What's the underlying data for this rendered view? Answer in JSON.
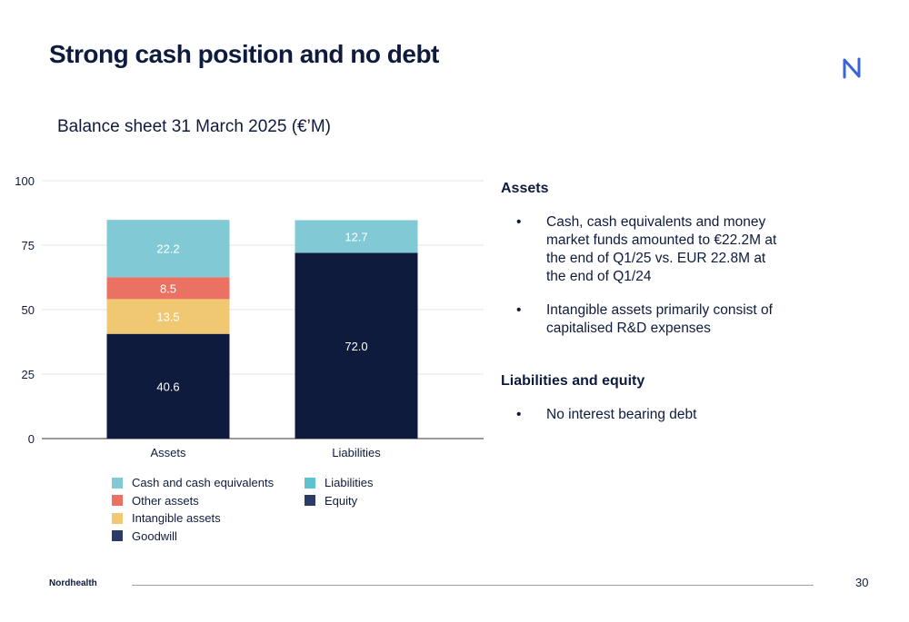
{
  "slide": {
    "title": "Strong cash position and no debt",
    "logo": "nordhealth-n-logo",
    "page_number": "30",
    "brand": "Nordhealth"
  },
  "chart_data": {
    "type": "bar",
    "stacked": true,
    "title": "Balance sheet 31 March 2025 (€’M)",
    "xlabel": "",
    "ylabel": "",
    "ylim": [
      0,
      100
    ],
    "yticks": [
      "0",
      "25",
      "50",
      "75",
      "100"
    ],
    "categories": [
      "Assets",
      "Liabilities"
    ],
    "series": [
      {
        "name": "Goodwill",
        "values": [
          40.6,
          null
        ],
        "labels": [
          "40.6",
          ""
        ],
        "color": "#0f1b3c"
      },
      {
        "name": "Intangible assets",
        "values": [
          13.5,
          null
        ],
        "labels": [
          "13.5",
          ""
        ],
        "color": "#f0c872"
      },
      {
        "name": "Other assets",
        "values": [
          8.5,
          null
        ],
        "labels": [
          "8.5",
          ""
        ],
        "color": "#eb7163"
      },
      {
        "name": "Cash and cash equivalents",
        "values": [
          22.2,
          null
        ],
        "labels": [
          "22.2",
          ""
        ],
        "color": "#82c9d6"
      },
      {
        "name": "Equity",
        "values": [
          null,
          72.0
        ],
        "labels": [
          "",
          "72.0"
        ],
        "color": "#0f1b3c"
      },
      {
        "name": "Liabilities",
        "values": [
          null,
          12.7
        ],
        "labels": [
          "",
          "12.7"
        ],
        "color": "#82c9d6"
      }
    ],
    "legend_left": [
      {
        "name": "Cash and cash equivalents",
        "color": "#82c9d6"
      },
      {
        "name": "Other assets",
        "color": "#eb7163"
      },
      {
        "name": "Intangible assets",
        "color": "#f0c872"
      },
      {
        "name": "Goodwill",
        "color": "#2b3a67"
      }
    ],
    "legend_right": [
      {
        "name": "Liabilities",
        "color": "#5fc3cf"
      },
      {
        "name": "Equity",
        "color": "#2b3a67"
      }
    ],
    "grid": true,
    "legend_placement": "bottom"
  },
  "commentary": {
    "assets_heading": "Assets",
    "assets_bullets": [
      "Cash, cash equivalents and money market funds amounted to €22.2M at the end of Q1/25 vs. EUR 22.8M at the end of Q1/24",
      "Intangible assets primarily consist of capitalised R&D expenses"
    ],
    "liabilities_heading": "Liabilities and equity",
    "liabilities_bullets": [
      "No interest bearing debt"
    ]
  }
}
